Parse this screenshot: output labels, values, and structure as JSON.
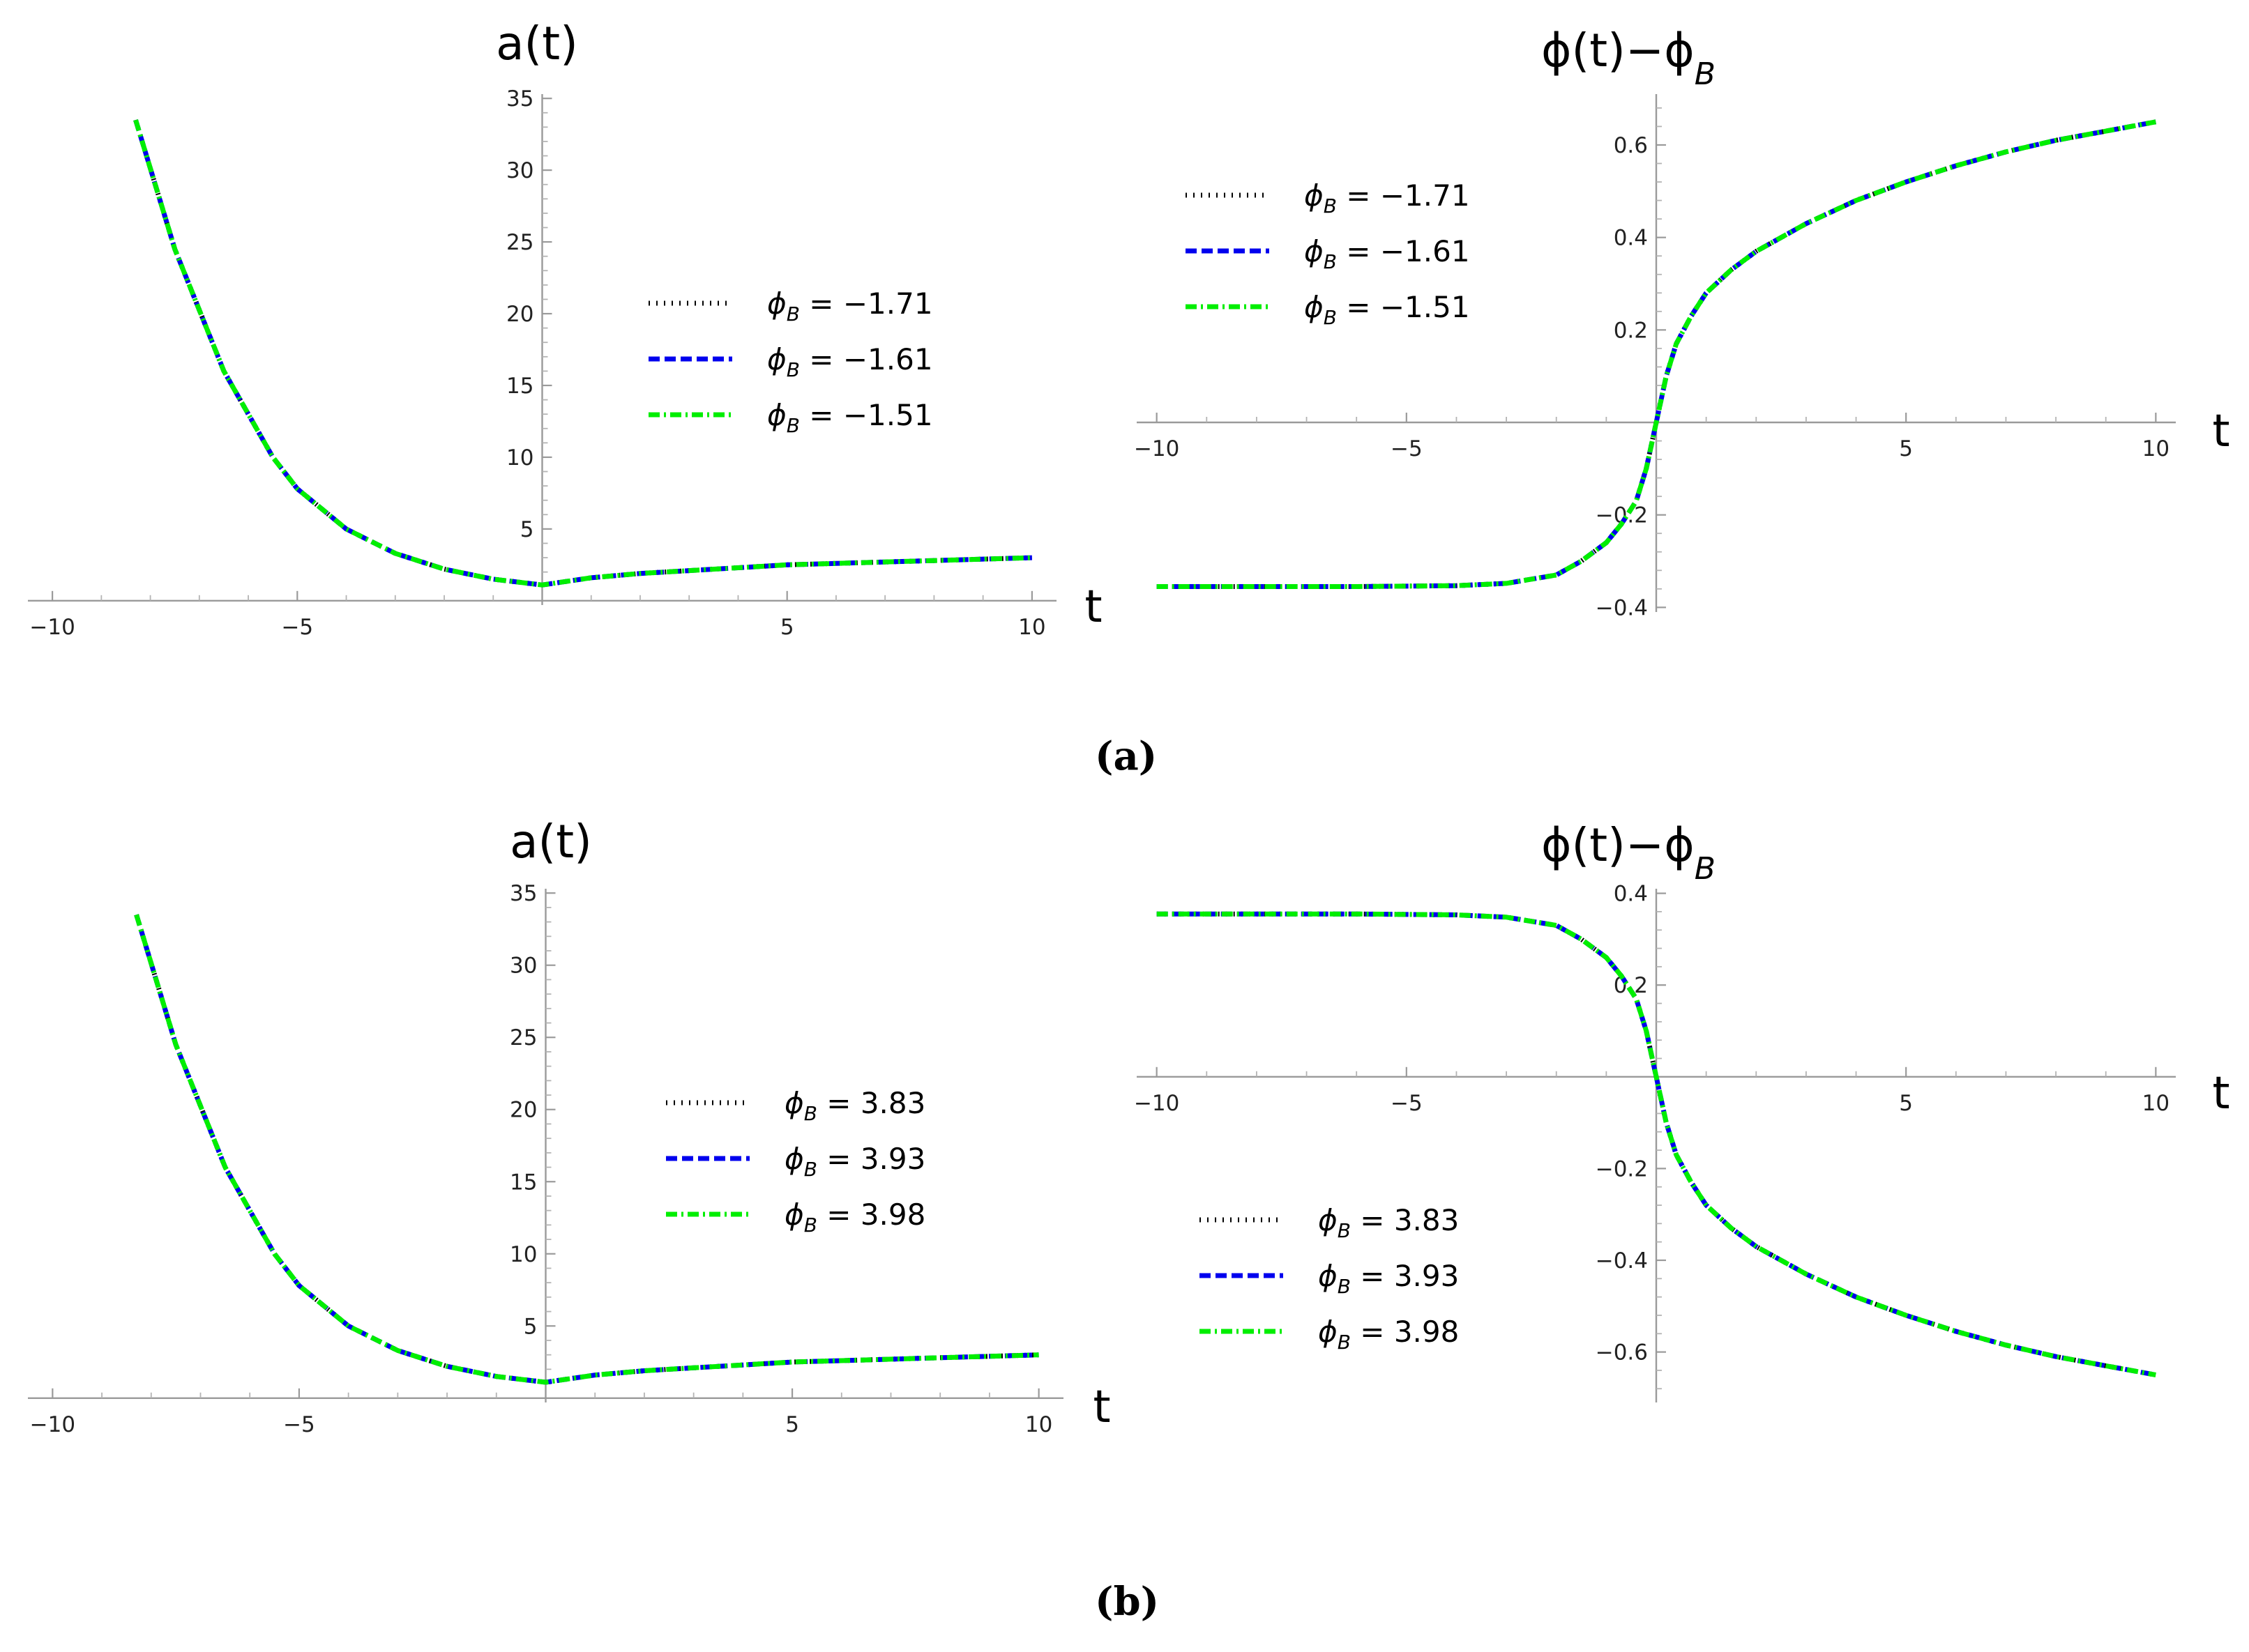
{
  "captions": [
    "(a)",
    "(b)"
  ],
  "colors": {
    "black": "#000000",
    "blue": "#0000ee",
    "green": "#00ee00",
    "axis": "#9a9a9a"
  },
  "chart_data": [
    {
      "type": "line",
      "panel": "a-left",
      "title": "a(t)",
      "xlabel": "t",
      "ylabel": "",
      "xlim": [
        -10.5,
        10.5
      ],
      "ylim": [
        -0.3,
        35.3
      ],
      "xticks": [
        -10,
        -5,
        5,
        10
      ],
      "yticks": [
        5,
        10,
        15,
        20,
        25,
        30,
        35
      ],
      "legend_position": "upper-center",
      "series": [
        {
          "name": "-1.71",
          "style": "dotted",
          "color": "#000000"
        },
        {
          "name": "-1.61",
          "style": "dashed",
          "color": "#0000ee"
        },
        {
          "name": "-1.51",
          "style": "dashdot",
          "color": "#00ee00"
        }
      ],
      "x": [
        -8.3,
        -7.5,
        -6.5,
        -5.5,
        -5.0,
        -4.0,
        -3.0,
        -2.0,
        -1.0,
        0.0,
        1.0,
        2.0,
        3.0,
        4.0,
        5.0,
        6.0,
        7.0,
        8.0,
        9.0,
        10.0
      ],
      "values": [
        33.5,
        24.5,
        16.0,
        10.0,
        7.8,
        5.0,
        3.3,
        2.2,
        1.5,
        1.1,
        1.6,
        1.9,
        2.1,
        2.3,
        2.5,
        2.6,
        2.7,
        2.8,
        2.9,
        3.0
      ]
    },
    {
      "type": "line",
      "panel": "a-right",
      "title": "ϕ(t)−ϕ",
      "title_sub": "B",
      "xlabel": "t",
      "ylabel": "",
      "xlim": [
        -10.4,
        10.4
      ],
      "ylim": [
        -0.41,
        0.71
      ],
      "xticks": [
        -10,
        -5,
        5,
        10
      ],
      "yticks": [
        -0.4,
        -0.2,
        0.2,
        0.4,
        0.6
      ],
      "legend_position": "upper-left",
      "series": [
        {
          "name": "-1.71",
          "style": "dotted",
          "color": "#000000"
        },
        {
          "name": "-1.61",
          "style": "dashed",
          "color": "#0000ee"
        },
        {
          "name": "-1.51",
          "style": "dashdot",
          "color": "#00ee00"
        }
      ],
      "x": [
        -10,
        -8,
        -6,
        -4,
        -3,
        -2,
        -1.5,
        -1.0,
        -0.7,
        -0.4,
        -0.2,
        0.0,
        0.2,
        0.4,
        0.7,
        1.0,
        1.5,
        2.0,
        3.0,
        4.0,
        5.0,
        6.0,
        7.0,
        8.0,
        9.0,
        10.0
      ],
      "values": [
        -0.355,
        -0.355,
        -0.355,
        -0.353,
        -0.348,
        -0.33,
        -0.3,
        -0.26,
        -0.22,
        -0.17,
        -0.1,
        0.0,
        0.1,
        0.17,
        0.23,
        0.28,
        0.33,
        0.37,
        0.43,
        0.48,
        0.52,
        0.555,
        0.585,
        0.61,
        0.63,
        0.65
      ]
    },
    {
      "type": "line",
      "panel": "b-left",
      "title": "a(t)",
      "xlabel": "t",
      "ylabel": "",
      "xlim": [
        -10.5,
        10.5
      ],
      "ylim": [
        -0.3,
        35.3
      ],
      "xticks": [
        -10,
        -5,
        5,
        10
      ],
      "yticks": [
        5,
        10,
        15,
        20,
        25,
        30,
        35
      ],
      "legend_position": "center-right",
      "series": [
        {
          "name": "3.83",
          "style": "dotted",
          "color": "#000000"
        },
        {
          "name": "3.93",
          "style": "dashed",
          "color": "#0000ee"
        },
        {
          "name": "3.98",
          "style": "dashdot",
          "color": "#00ee00"
        }
      ],
      "x": [
        -8.3,
        -7.5,
        -6.5,
        -5.5,
        -5.0,
        -4.0,
        -3.0,
        -2.0,
        -1.0,
        0.0,
        1.0,
        2.0,
        3.0,
        4.0,
        5.0,
        6.0,
        7.0,
        8.0,
        9.0,
        10.0
      ],
      "values": [
        33.5,
        24.5,
        16.0,
        10.0,
        7.8,
        5.0,
        3.3,
        2.2,
        1.5,
        1.1,
        1.6,
        1.9,
        2.1,
        2.3,
        2.5,
        2.6,
        2.7,
        2.8,
        2.9,
        3.0
      ]
    },
    {
      "type": "line",
      "panel": "b-right",
      "title": "ϕ(t)−ϕ",
      "title_sub": "B",
      "xlabel": "t",
      "ylabel": "",
      "xlim": [
        -10.4,
        10.4
      ],
      "ylim": [
        -0.71,
        0.41
      ],
      "xticks": [
        -10,
        -5,
        5,
        10
      ],
      "yticks": [
        -0.6,
        -0.4,
        -0.2,
        0.2,
        0.4
      ],
      "legend_position": "lower-left",
      "series": [
        {
          "name": "3.83",
          "style": "dotted",
          "color": "#000000"
        },
        {
          "name": "3.93",
          "style": "dashed",
          "color": "#0000ee"
        },
        {
          "name": "3.98",
          "style": "dashdot",
          "color": "#00ee00"
        }
      ],
      "x": [
        -10,
        -8,
        -6,
        -4,
        -3,
        -2,
        -1.5,
        -1.0,
        -0.7,
        -0.4,
        -0.2,
        0.0,
        0.2,
        0.4,
        0.7,
        1.0,
        1.5,
        2.0,
        3.0,
        4.0,
        5.0,
        6.0,
        7.0,
        8.0,
        9.0,
        10.0
      ],
      "values": [
        0.355,
        0.355,
        0.355,
        0.353,
        0.348,
        0.33,
        0.3,
        0.26,
        0.22,
        0.17,
        0.1,
        0.0,
        -0.1,
        -0.17,
        -0.23,
        -0.28,
        -0.33,
        -0.37,
        -0.43,
        -0.48,
        -0.52,
        -0.555,
        -0.585,
        -0.61,
        -0.63,
        -0.65
      ]
    }
  ]
}
